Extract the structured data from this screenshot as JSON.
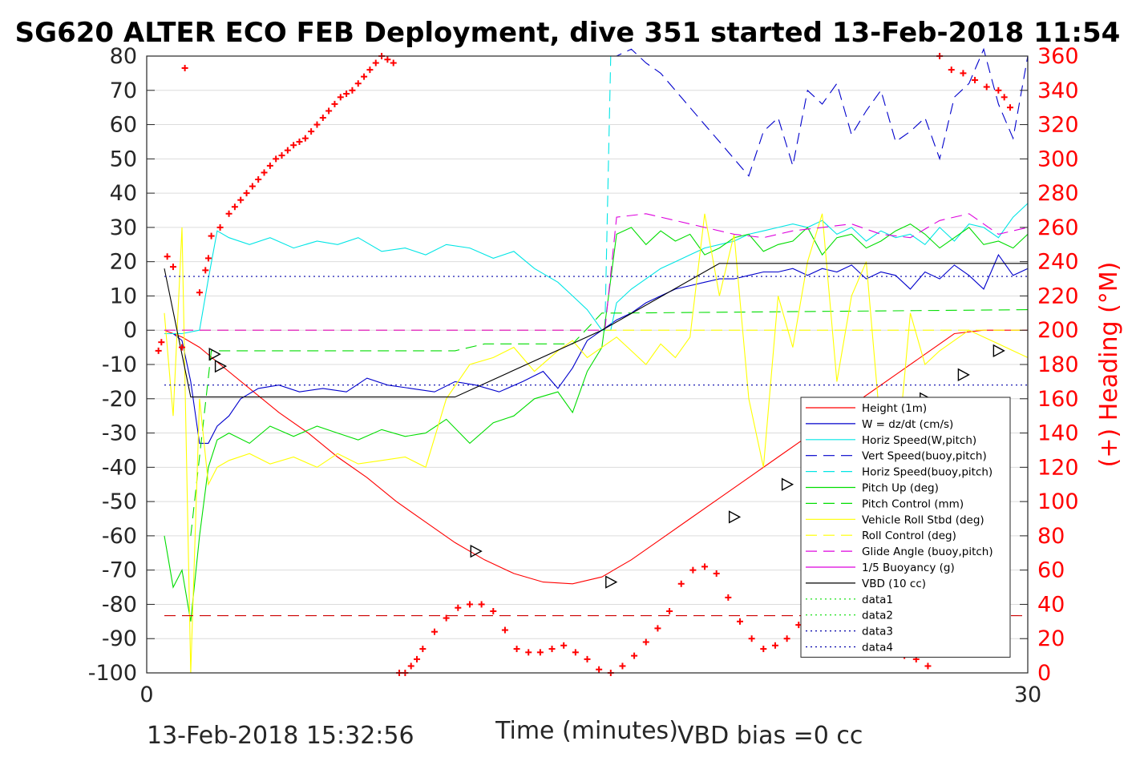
{
  "chart_data": {
    "type": "line",
    "title": "SG620 ALTER ECO FEB Deployment, dive 351 started 13-Feb-2018 11:54",
    "xlabel": "Time (minutes)",
    "ylabel_right": "(+) Heading (°M)",
    "xlim": [
      0,
      30
    ],
    "ylim_left": [
      -100,
      80
    ],
    "ylim_right": [
      0,
      360
    ],
    "x_ticks": [
      "0",
      "30"
    ],
    "y_ticks_left": [
      "80",
      "70",
      "60",
      "50",
      "40",
      "30",
      "20",
      "10",
      "0",
      "-10",
      "-20",
      "-30",
      "-40",
      "-50",
      "-60",
      "-70",
      "-80",
      "-90",
      "-100"
    ],
    "y_ticks_right": [
      "360",
      "340",
      "320",
      "300",
      "280",
      "260",
      "240",
      "220",
      "200",
      "180",
      "160",
      "140",
      "120",
      "100",
      "80",
      "60",
      "40",
      "20",
      "0"
    ],
    "footer_left": "13-Feb-2018 15:32:56",
    "footer_right": "VBD bias =0 cc",
    "grid": true,
    "legend_position": "lower-right",
    "colors": {
      "red": "#ff0000",
      "blue": "#0000cc",
      "cyan": "#00e5e5",
      "green": "#00dd00",
      "yellow": "#ffff00",
      "magenta": "#dd00dd",
      "black": "#000000",
      "darkred": "#cc0000",
      "datablue": "#0000aa"
    },
    "series": [
      {
        "name": "Height (1m)",
        "color": "red",
        "dash": "solid",
        "x": [
          0.6,
          1.2,
          1.8,
          2.5,
          3.5,
          4.5,
          5.5,
          6.5,
          7.5,
          8.5,
          9.5,
          10.5,
          11.5,
          12.5,
          13.5,
          14.5,
          15.5,
          16.5,
          17.5,
          18.5,
          19.5,
          20.5,
          21.5,
          22.5,
          23.5,
          24.5,
          25.5,
          26.5,
          27.5,
          28.5,
          29.0,
          30.0
        ],
        "y": [
          0,
          -2,
          -5,
          -10,
          -17,
          -24,
          -30,
          -37,
          -43,
          -50,
          -56,
          -62,
          -67,
          -71,
          -73.5,
          -74,
          -72,
          -67,
          -61,
          -55,
          -49,
          -43,
          -37,
          -31,
          -25,
          -19,
          -13,
          -7,
          -1,
          0,
          0,
          0
        ]
      },
      {
        "name": "W = dz/dt (cm/s)",
        "color": "blue",
        "dash": "solid",
        "x": [
          0.6,
          0.9,
          1.2,
          1.5,
          1.8,
          2.1,
          2.4,
          2.8,
          3.2,
          3.8,
          4.5,
          5.2,
          6.0,
          6.8,
          7.5,
          8.2,
          9.0,
          9.8,
          10.5,
          11.2,
          12.0,
          12.8,
          13.5,
          14.0,
          14.5,
          15.0,
          15.5,
          16.0,
          16.5,
          17.0,
          17.5,
          18.0,
          18.5,
          19.0,
          19.5,
          20.0,
          20.5,
          21.0,
          21.5,
          22.0,
          22.5,
          23.0,
          23.5,
          24.0,
          24.5,
          25.0,
          25.5,
          26.0,
          26.5,
          27.0,
          27.5,
          28.0,
          28.5,
          29.0,
          29.5,
          30.0
        ],
        "y": [
          -1,
          -1,
          -3,
          -15,
          -33,
          -33,
          -28,
          -25,
          -20,
          -17,
          -16,
          -18,
          -17,
          -18,
          -14,
          -16,
          -17,
          -18,
          -15,
          -16,
          -18,
          -15,
          -12,
          -17,
          -11,
          -3,
          0,
          3,
          5,
          8,
          10,
          12,
          13,
          14,
          15,
          15,
          16,
          17,
          17,
          18,
          16,
          18,
          17,
          19,
          15,
          17,
          16,
          12,
          17,
          15,
          19,
          16,
          12,
          22,
          16,
          18
        ]
      },
      {
        "name": "Horiz Speed(W,pitch)",
        "color": "cyan",
        "dash": "solid",
        "x": [
          0.6,
          1.2,
          1.8,
          2.1,
          2.4,
          2.8,
          3.5,
          4.2,
          5.0,
          5.8,
          6.5,
          7.2,
          8.0,
          8.8,
          9.5,
          10.2,
          11.0,
          11.8,
          12.5,
          13.2,
          14.0,
          14.5,
          15.0,
          15.5,
          15.8,
          16.0,
          16.5,
          17.0,
          17.5,
          18.0,
          18.5,
          19.0,
          19.5,
          20.0,
          20.5,
          21.0,
          21.5,
          22.0,
          22.5,
          23.0,
          23.5,
          24.0,
          24.5,
          25.0,
          25.5,
          26.0,
          26.5,
          27.0,
          27.5,
          28.0,
          28.5,
          29.0,
          29.5,
          30.0
        ],
        "y": [
          -1,
          -1,
          0,
          15,
          29,
          27,
          25,
          27,
          24,
          26,
          25,
          27,
          23,
          24,
          22,
          25,
          24,
          21,
          23,
          18,
          14,
          10,
          6,
          0,
          0,
          8,
          12,
          15,
          18,
          20,
          22,
          24,
          25,
          26,
          28,
          29,
          30,
          31,
          30,
          32,
          28,
          30,
          26,
          29,
          27,
          28,
          25,
          30,
          26,
          31,
          30,
          27,
          33,
          37
        ]
      },
      {
        "name": "Vert Speed(buoy,pitch)",
        "color": "blue",
        "dash": "dash",
        "x": [
          15.8,
          16.0,
          16.5,
          17.0,
          17.5,
          18.0,
          18.5,
          19.0,
          19.5,
          20.0,
          20.5,
          21.0,
          21.5,
          22.0,
          22.5,
          23.0,
          23.5,
          24.0,
          24.5,
          25.0,
          25.5,
          26.0,
          26.5,
          27.0,
          27.5,
          28.0,
          28.5,
          29.0,
          29.5,
          30.0
        ],
        "y": [
          80,
          80,
          82,
          78,
          75,
          70,
          65,
          60,
          55,
          50,
          45,
          58,
          62,
          48,
          70,
          66,
          72,
          57,
          64,
          70,
          55,
          58,
          62,
          50,
          68,
          72,
          82,
          66,
          56,
          80
        ]
      },
      {
        "name": "Horiz Speed(buoy,pitch)",
        "color": "cyan",
        "dash": "dash",
        "x": [
          15.6,
          15.8,
          30.0
        ],
        "y": [
          0,
          80,
          80
        ]
      },
      {
        "name": "Pitch Up (deg)",
        "color": "green",
        "dash": "solid",
        "x": [
          0.6,
          0.9,
          1.2,
          1.5,
          1.8,
          2.1,
          2.4,
          2.8,
          3.5,
          4.2,
          5.0,
          5.8,
          6.5,
          7.2,
          8.0,
          8.8,
          9.5,
          10.2,
          11.0,
          11.8,
          12.5,
          13.2,
          14.0,
          14.5,
          15.0,
          15.5,
          16.0,
          16.5,
          17.0,
          17.5,
          18.0,
          18.5,
          19.0,
          19.5,
          20.0,
          20.5,
          21.0,
          21.5,
          22.0,
          22.5,
          23.0,
          23.5,
          24.0,
          24.5,
          25.0,
          25.5,
          26.0,
          26.5,
          27.0,
          27.5,
          28.0,
          28.5,
          29.0,
          29.5,
          30.0
        ],
        "y": [
          -60,
          -75,
          -70,
          -85,
          -60,
          -40,
          -32,
          -30,
          -33,
          -28,
          -31,
          -28,
          -30,
          -32,
          -29,
          -31,
          -30,
          -26,
          -33,
          -27,
          -25,
          -20,
          -18,
          -24,
          -12,
          -5,
          28,
          30,
          25,
          29,
          26,
          28,
          22,
          24,
          27,
          28,
          23,
          25,
          26,
          30,
          22,
          27,
          28,
          24,
          26,
          29,
          31,
          28,
          24,
          27,
          30,
          25,
          26,
          24,
          28
        ]
      },
      {
        "name": "Pitch Control (mm)",
        "color": "green",
        "dash": "dash",
        "x": [
          1.5,
          2.2,
          10.5,
          11.5,
          14.5,
          15.5,
          16.2,
          30.0
        ],
        "y": [
          -60,
          -6,
          -6,
          -4,
          -4,
          5,
          5,
          6
        ]
      },
      {
        "name": "Vehicle Roll Stbd (deg)",
        "color": "yellow",
        "dash": "solid",
        "x": [
          0.6,
          0.9,
          1.2,
          1.5,
          1.8,
          2.1,
          2.4,
          2.8,
          3.5,
          4.2,
          5.0,
          5.8,
          6.5,
          7.2,
          8.0,
          8.8,
          9.5,
          10.2,
          11.0,
          11.8,
          12.5,
          13.2,
          14.0,
          14.5,
          15.0,
          15.5,
          16.0,
          16.5,
          17.0,
          17.5,
          18.0,
          18.5,
          19.0,
          19.5,
          20.0,
          20.5,
          21.0,
          21.5,
          22.0,
          22.5,
          23.0,
          23.5,
          24.0,
          24.5,
          25.0,
          25.5,
          26.0,
          26.5,
          27.0,
          27.5,
          28.0,
          28.5,
          29.0,
          29.5,
          30.0
        ],
        "y": [
          5,
          -25,
          30,
          -100,
          -20,
          -45,
          -40,
          -38,
          -36,
          -39,
          -37,
          -40,
          -36,
          -39,
          -38,
          -37,
          -40,
          -20,
          -10,
          -8,
          -5,
          -12,
          -6,
          -3,
          -8,
          -5,
          -2,
          -6,
          -10,
          -4,
          -8,
          -2,
          34,
          10,
          28,
          -20,
          -40,
          10,
          -5,
          20,
          34,
          -15,
          10,
          20,
          -30,
          -42,
          5,
          -10,
          -6,
          -3,
          0,
          -2,
          -4,
          -6,
          -8
        ]
      },
      {
        "name": "Roll Control (deg)",
        "color": "yellow",
        "dash": "dash",
        "x": [
          0.6,
          30.0
        ],
        "y": [
          0,
          0
        ]
      },
      {
        "name": "Glide Angle (buoy,pitch)",
        "color": "magenta",
        "dash": "dash",
        "x": [
          0.6,
          15.6,
          16.0,
          17.0,
          18.0,
          19.0,
          20.0,
          21.0,
          22.0,
          23.0,
          24.0,
          25.0,
          26.0,
          27.0,
          28.0,
          29.0,
          30.0
        ],
        "y": [
          0,
          0,
          33,
          34,
          32,
          30,
          28,
          27,
          29,
          30,
          31,
          28,
          27,
          32,
          34,
          28,
          30
        ]
      },
      {
        "name": "1/5 Buoyancy (g)",
        "color": "magenta",
        "dash": "solid",
        "x": [],
        "y": []
      },
      {
        "name": "VBD (10 cc)",
        "color": "black",
        "dash": "solid",
        "x": [
          0.6,
          1.5,
          10.5,
          15.5,
          19.5,
          30.0
        ],
        "y": [
          18,
          -19.5,
          -19.5,
          0,
          19.5,
          19.5
        ]
      },
      {
        "name": "data1",
        "color": "green",
        "dash": "dot",
        "x": [],
        "y": []
      },
      {
        "name": "data2",
        "color": "green",
        "dash": "dot",
        "x": [],
        "y": []
      },
      {
        "name": "data3",
        "color": "datablue",
        "dash": "dot",
        "x": [
          0.6,
          30.0
        ],
        "y": [
          15.7,
          15.7
        ]
      },
      {
        "name": "data4",
        "color": "datablue",
        "dash": "dot",
        "x": [
          0.6,
          30.0
        ],
        "y": [
          -16,
          -16
        ]
      }
    ],
    "extra_lines": [
      {
        "color": "darkred",
        "dash": "dash",
        "x": [
          0.6,
          30.0
        ],
        "y": [
          -83.3,
          -83.3
        ]
      }
    ],
    "heading": {
      "axis": "right",
      "x": [
        0.4,
        0.5,
        0.7,
        0.9,
        1.2,
        1.3,
        1.8,
        2.0,
        2.1,
        2.2,
        2.5,
        2.8,
        3.0,
        3.2,
        3.4,
        3.6,
        3.8,
        4.0,
        4.2,
        4.4,
        4.6,
        4.8,
        5.0,
        5.2,
        5.4,
        5.6,
        5.8,
        6.0,
        6.2,
        6.4,
        6.6,
        6.8,
        7.0,
        7.2,
        7.4,
        7.6,
        7.8,
        8.0,
        8.2,
        8.4,
        8.6,
        8.8,
        9.0,
        9.2,
        9.4,
        9.8,
        10.2,
        10.6,
        11.0,
        11.4,
        11.8,
        12.2,
        12.6,
        13.0,
        13.4,
        13.8,
        14.2,
        14.6,
        15.0,
        15.4,
        15.8,
        16.2,
        16.6,
        17.0,
        17.4,
        17.8,
        18.2,
        18.6,
        19.0,
        19.4,
        19.8,
        20.2,
        20.6,
        21.0,
        21.4,
        21.8,
        22.2,
        22.6,
        23.0,
        23.4,
        23.8,
        24.2,
        24.6,
        25.0,
        25.4,
        25.8,
        26.2,
        26.6,
        27.0,
        27.4,
        27.8,
        28.2,
        28.6,
        29.0,
        29.2,
        29.4
      ],
      "y": [
        188,
        193,
        243,
        237,
        190,
        353,
        222,
        235,
        242,
        255,
        260,
        268,
        272,
        276,
        280,
        284,
        288,
        292,
        296,
        300,
        302,
        305,
        308,
        310,
        312,
        316,
        320,
        324,
        328,
        332,
        336,
        338,
        340,
        344,
        348,
        352,
        356,
        360,
        358,
        356,
        0,
        0,
        4,
        8,
        14,
        24,
        32,
        38,
        40,
        40,
        36,
        25,
        14,
        12,
        12,
        14,
        16,
        12,
        8,
        2,
        0,
        4,
        10,
        18,
        26,
        36,
        52,
        60,
        62,
        58,
        44,
        30,
        20,
        14,
        16,
        20,
        28,
        36,
        50,
        54,
        58,
        54,
        40,
        26,
        16,
        10,
        8,
        4,
        360,
        352,
        350,
        346,
        342,
        340,
        336,
        330
      ]
    },
    "markers": {
      "x": [
        2.3,
        2.5,
        11.2,
        15.8,
        20.0,
        21.8,
        23.2,
        24.0,
        25.2,
        26.5,
        27.8,
        29.0
      ],
      "y": [
        -7,
        -10.5,
        -64.5,
        -73.5,
        -54.5,
        -45,
        -36.5,
        -32,
        -25.5,
        -20,
        -13,
        -6
      ]
    }
  }
}
